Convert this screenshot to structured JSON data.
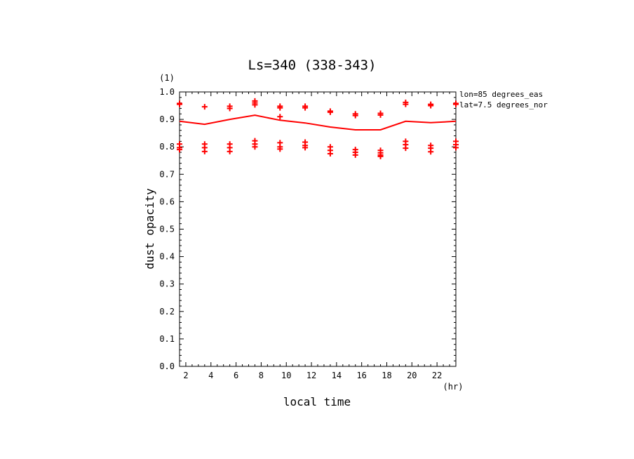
{
  "chart_data": {
    "type": "line",
    "title": "Ls=340 (338-343)",
    "xlabel": "local time",
    "ylabel": "dust opacity",
    "x_unit": "(hr)",
    "y_unit": "(1)",
    "annotations": [
      "lon=85 degrees_eas",
      "lat=7.5 degrees_nor"
    ],
    "xlim": [
      1.5,
      23.5
    ],
    "ylim": [
      0.0,
      1.0
    ],
    "x_ticks": [
      2,
      4,
      6,
      8,
      10,
      12,
      14,
      16,
      18,
      20,
      22
    ],
    "y_ticks": [
      0.0,
      0.1,
      0.2,
      0.3,
      0.4,
      0.5,
      0.6,
      0.7,
      0.8,
      0.9,
      1.0
    ],
    "y_tick_labels": [
      "0.0",
      "0.1",
      "0.2",
      "0.3",
      "0.4",
      "0.5",
      "0.6",
      "0.7",
      "0.8",
      "0.9",
      "1.0"
    ],
    "grid": false,
    "color": "#ff0000",
    "series": [
      {
        "style": "line",
        "x": [
          1.5,
          3.5,
          5.5,
          7.5,
          9.5,
          11.5,
          13.5,
          15.5,
          17.5,
          19.5,
          21.5,
          23.5
        ],
        "y": [
          0.893,
          0.882,
          0.9,
          0.915,
          0.897,
          0.887,
          0.872,
          0.862,
          0.862,
          0.893,
          0.888,
          0.893
        ]
      },
      {
        "style": "markers",
        "x": [
          1.5,
          1.5,
          3.5,
          5.5,
          5.5,
          7.5,
          7.5,
          7.5,
          9.5,
          9.5,
          9.5,
          11.5,
          11.5,
          13.5,
          13.5,
          15.5,
          15.5,
          17.5,
          17.5,
          19.5,
          19.5,
          21.5,
          21.5,
          23.5,
          23.5,
          1.5,
          1.5,
          1.5,
          3.5,
          3.5,
          3.5,
          5.5,
          5.5,
          5.5,
          7.5,
          7.5,
          7.5,
          9.5,
          9.5,
          9.5,
          11.5,
          11.5,
          11.5,
          13.5,
          13.5,
          13.5,
          15.5,
          15.5,
          15.5,
          17.5,
          17.5,
          17.5,
          17.5,
          19.5,
          19.5,
          19.5,
          21.5,
          21.5,
          21.5,
          23.5,
          23.5,
          23.5
        ],
        "y": [
          0.958,
          0.955,
          0.946,
          0.948,
          0.94,
          0.967,
          0.96,
          0.953,
          0.948,
          0.942,
          0.91,
          0.948,
          0.942,
          0.93,
          0.926,
          0.92,
          0.914,
          0.922,
          0.916,
          0.962,
          0.955,
          0.955,
          0.95,
          0.958,
          0.955,
          0.81,
          0.797,
          0.79,
          0.81,
          0.797,
          0.783,
          0.81,
          0.797,
          0.783,
          0.822,
          0.81,
          0.8,
          0.815,
          0.8,
          0.792,
          0.817,
          0.805,
          0.797,
          0.8,
          0.787,
          0.775,
          0.79,
          0.78,
          0.77,
          0.787,
          0.778,
          0.77,
          0.765,
          0.82,
          0.808,
          0.795,
          0.805,
          0.795,
          0.782,
          0.82,
          0.808,
          0.797
        ]
      }
    ]
  }
}
